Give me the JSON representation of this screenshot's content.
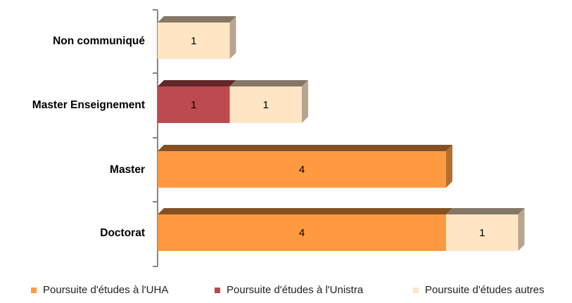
{
  "chart_data": {
    "type": "bar",
    "orientation": "horizontal",
    "stacked": true,
    "style": "3d",
    "categories": [
      "Non communiqué",
      "Master Enseignement",
      "Master",
      "Doctorat"
    ],
    "series": [
      {
        "name": "Poursuite d'études à l'UHA",
        "values": [
          0,
          0,
          4,
          4
        ],
        "color": "#FF9A40"
      },
      {
        "name": "Poursuite d'études à l'Unistra",
        "values": [
          0,
          1,
          0,
          0
        ],
        "color": "#BC4A4E"
      },
      {
        "name": "Poursuite d'études autres",
        "values": [
          1,
          1,
          0,
          1
        ],
        "color": "#FFE5C4"
      }
    ],
    "title": "",
    "xlabel": "",
    "ylabel": "",
    "xlim": [
      0,
      5
    ],
    "grid": false,
    "legend": "bottom"
  }
}
